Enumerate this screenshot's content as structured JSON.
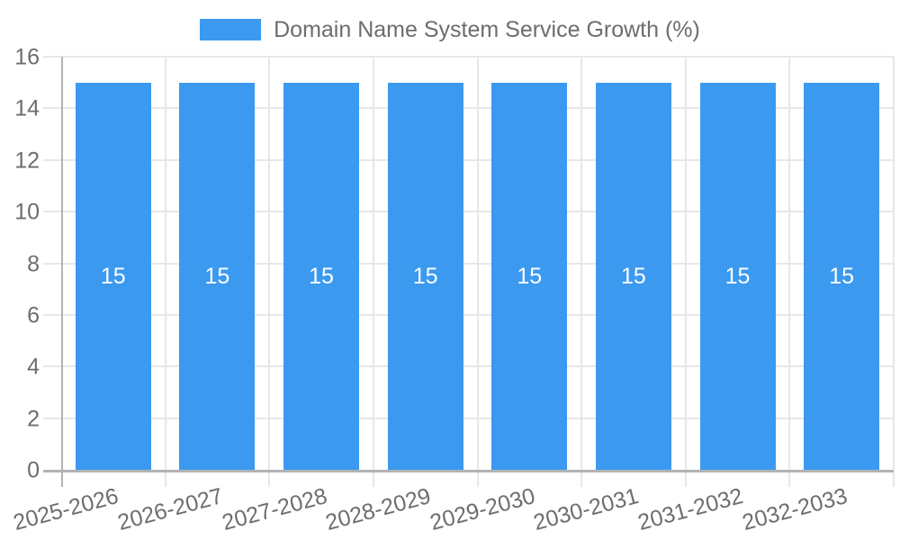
{
  "legend": {
    "title": "Domain Name System Service Growth (%)"
  },
  "chart_data": {
    "type": "bar",
    "title": "Domain Name System Service Growth (%)",
    "categories": [
      "2025-2026",
      "2026-2027",
      "2027-2028",
      "2028-2029",
      "2029-2030",
      "2030-2031",
      "2031-2032",
      "2032-2033"
    ],
    "values": [
      15,
      15,
      15,
      15,
      15,
      15,
      15,
      15
    ],
    "xlabel": "",
    "ylabel": "",
    "ylim": [
      0,
      16
    ],
    "yticks": [
      0,
      2,
      4,
      6,
      8,
      10,
      12,
      14,
      16
    ],
    "grid": true,
    "legend_position": "top",
    "colors": {
      "bar": "#3b9af0",
      "value_label": "#ffffff",
      "axis_text": "#6d6d6d"
    }
  }
}
